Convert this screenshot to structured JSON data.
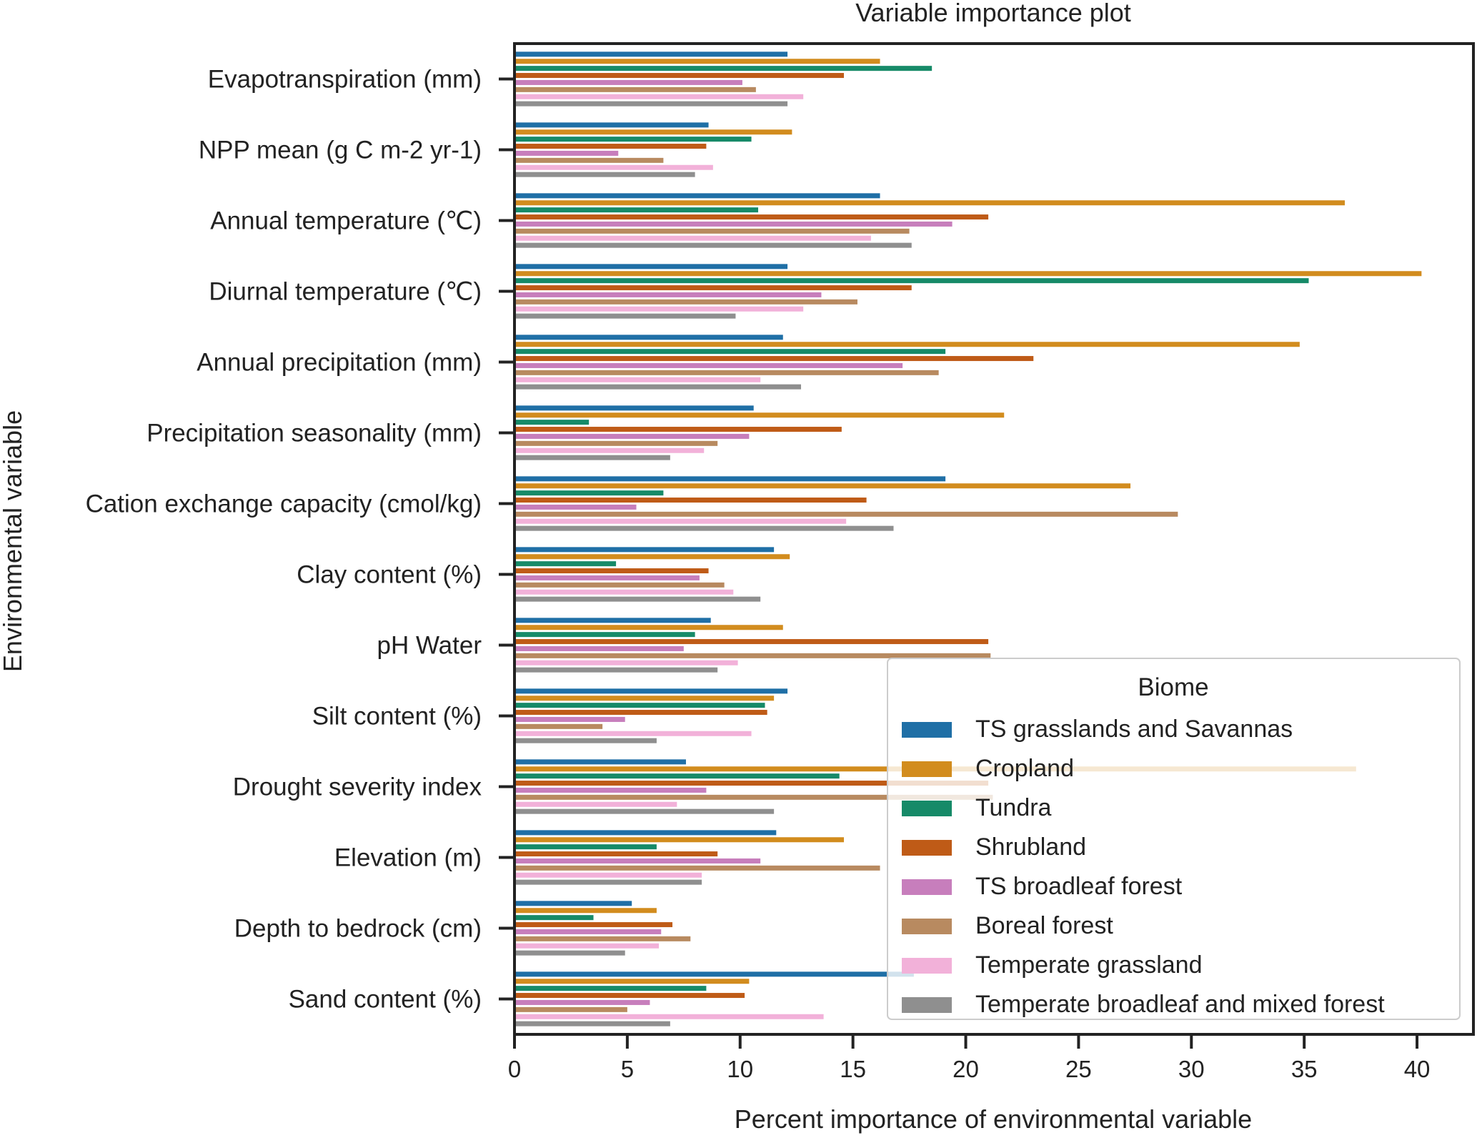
{
  "chart_data": {
    "type": "bar",
    "orientation": "horizontal",
    "title": "Variable importance plot",
    "xlabel": "Percent importance of environmental variable",
    "ylabel": "Environmental variable",
    "xlim": [
      0,
      42.5
    ],
    "xticks": [
      0,
      5,
      10,
      15,
      20,
      25,
      30,
      35,
      40
    ],
    "grid": false,
    "legend": {
      "title": "Biome",
      "position": "bottom-right"
    },
    "categories": [
      "Evapotranspiration (mm)",
      "NPP mean (g C m-2 yr-1)",
      "Annual temperature (℃)",
      "Diurnal temperature (℃)",
      "Annual precipitation (mm)",
      "Precipitation seasonality (mm)",
      "Cation exchange capacity (cmol/kg)",
      "Clay content (%)",
      "pH Water",
      "Silt content (%)",
      "Drought severity index",
      "Elevation (m)",
      "Depth to bedrock (cm)",
      "Sand content (%)"
    ],
    "series": [
      {
        "name": "TS grasslands and Savannas",
        "color": "#1f6fa6",
        "values": [
          12.1,
          8.6,
          16.2,
          12.1,
          11.9,
          10.6,
          19.1,
          11.5,
          8.7,
          12.1,
          7.6,
          11.6,
          5.2,
          17.7
        ]
      },
      {
        "name": "Cropland",
        "color": "#d28c1e",
        "values": [
          16.2,
          12.3,
          36.8,
          40.2,
          34.8,
          21.7,
          27.3,
          12.2,
          11.9,
          11.5,
          37.3,
          14.6,
          6.3,
          10.4
        ]
      },
      {
        "name": "Tundra",
        "color": "#168a68",
        "values": [
          18.5,
          10.5,
          10.8,
          35.2,
          19.1,
          3.3,
          6.6,
          4.5,
          8.0,
          11.1,
          14.4,
          6.3,
          3.5,
          8.5
        ]
      },
      {
        "name": "Shrubland",
        "color": "#bf5b17",
        "values": [
          14.6,
          8.5,
          21.0,
          17.6,
          23.0,
          14.5,
          15.6,
          8.6,
          21.0,
          11.2,
          21.0,
          9.0,
          7.0,
          10.2
        ]
      },
      {
        "name": "TS broadleaf forest",
        "color": "#c77ebc",
        "values": [
          10.1,
          4.6,
          19.4,
          13.6,
          17.2,
          10.4,
          5.4,
          8.2,
          7.5,
          4.9,
          8.5,
          10.9,
          6.5,
          6.0
        ]
      },
      {
        "name": "Boreal forest",
        "color": "#b88a60",
        "values": [
          10.7,
          6.6,
          17.5,
          15.2,
          18.8,
          9.0,
          29.4,
          9.3,
          21.1,
          3.9,
          21.2,
          16.2,
          7.8,
          5.0
        ]
      },
      {
        "name": "Temperate grassland",
        "color": "#f2b1d9",
        "values": [
          12.8,
          8.8,
          15.8,
          12.8,
          10.9,
          8.4,
          14.7,
          9.7,
          9.9,
          10.5,
          7.2,
          8.3,
          6.4,
          13.7
        ]
      },
      {
        "name": "Temperate  broadleaf and mixed forest",
        "color": "#8f8f8f",
        "values": [
          12.1,
          8.0,
          17.6,
          9.8,
          12.7,
          6.9,
          16.8,
          10.9,
          9.0,
          6.3,
          11.5,
          8.3,
          4.9,
          6.9
        ]
      }
    ]
  }
}
